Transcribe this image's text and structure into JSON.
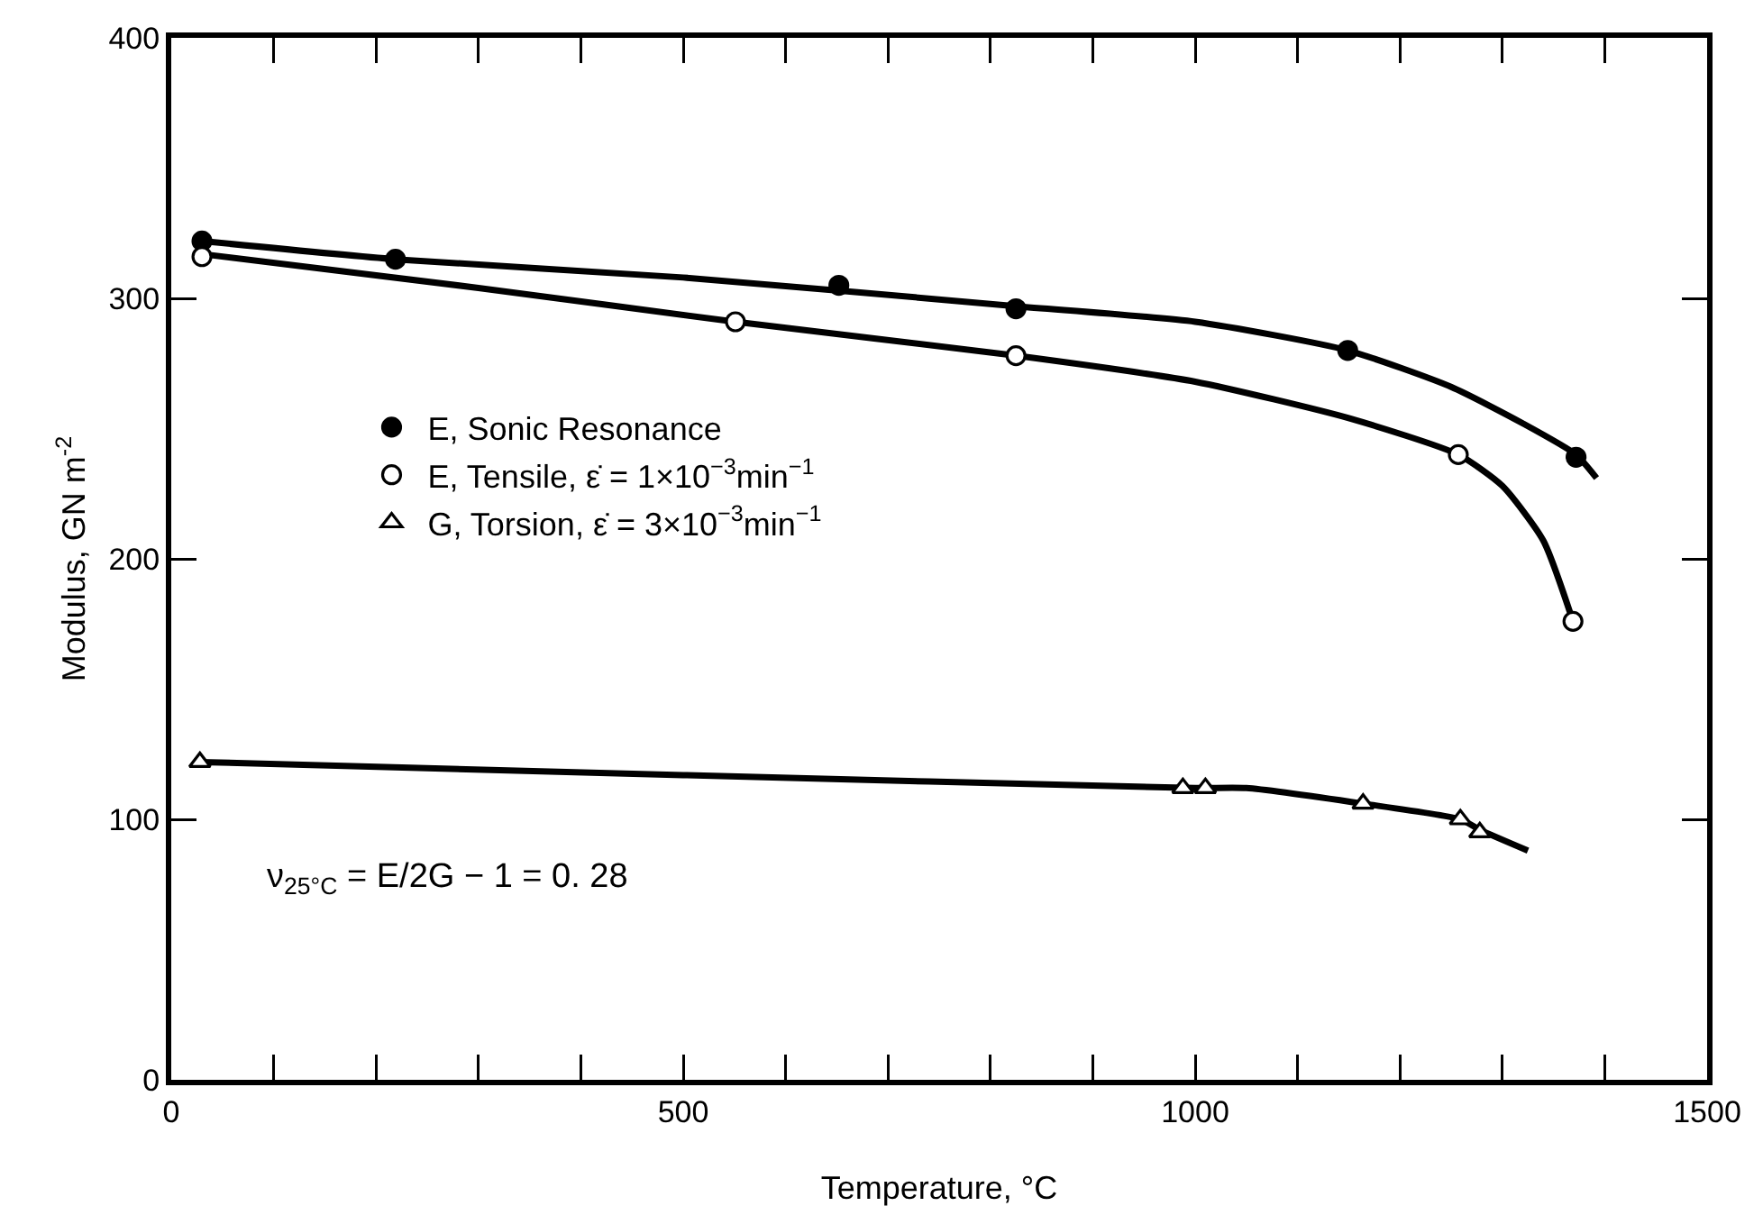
{
  "chart_data": {
    "type": "scatter",
    "xlabel": "Temperature, °C",
    "ylabel": "Modulus, GN m$^{-2}$",
    "xlim": [
      0,
      1500
    ],
    "ylim": [
      0,
      400
    ],
    "xticks": [
      0,
      {
        "value": 100,
        "label": null
      },
      {
        "value": 200,
        "label": null
      },
      {
        "value": 300,
        "label": null
      },
      {
        "value": 400,
        "label": null
      },
      500,
      {
        "value": 600,
        "label": null
      },
      {
        "value": 700,
        "label": null
      },
      {
        "value": 800,
        "label": null
      },
      {
        "value": 900,
        "label": null
      },
      1000,
      {
        "value": 1100,
        "label": null
      },
      {
        "value": 1200,
        "label": null
      },
      {
        "value": 1300,
        "label": null
      },
      {
        "value": 1400,
        "label": null
      },
      1500
    ],
    "yticks": [
      0,
      100,
      200,
      300,
      400
    ],
    "grid": false,
    "legend": "left",
    "annotations": [
      "ν$_{25°C}$ = E/2G − 1 = 0. 28"
    ],
    "series": [
      {
        "name": "E, Sonic Resonance",
        "marker": "circle",
        "color": "#000000",
        "x": [
          30,
          219,
          652,
          825,
          1149,
          1372
        ],
        "values": [
          322,
          315,
          305,
          296,
          280,
          239
        ]
      },
      {
        "name": "E, Tensile, ε̇ = 1×10$^{−3}$min$^{−1}$",
        "marker": "circle",
        "color": "#ffffff",
        "x": [
          30,
          551,
          825,
          1257,
          1369
        ],
        "values": [
          316,
          291,
          278,
          240,
          176
        ]
      },
      {
        "name": "G, Torsion, ε̇ = 3×10$^{−3}$min$^{−1}$",
        "marker": "triangle",
        "color": "#ffffff",
        "x": [
          28,
          988,
          1010,
          1164,
          1259,
          1278
        ],
        "values": [
          122,
          112,
          112,
          106,
          100,
          95
        ]
      },
      {
        "type": "line",
        "marker": "none",
        "line_style": "solid",
        "color": "#000000",
        "x": [
          30,
          219,
          500,
          825,
          1000,
          1149,
          1250,
          1320,
          1372,
          1392
        ],
        "values": [
          322,
          315,
          308,
          297,
          291,
          280,
          266,
          252,
          240,
          231
        ]
      },
      {
        "type": "line",
        "marker": "none",
        "line_style": "solid",
        "color": "#000000",
        "x": [
          30,
          300,
          551,
          825,
          1000,
          1150,
          1257,
          1300,
          1340,
          1369
        ],
        "values": [
          317,
          304,
          291,
          278,
          268,
          254,
          240,
          228,
          207,
          176
        ]
      },
      {
        "type": "line",
        "marker": "none",
        "line_style": "solid",
        "color": "#000000",
        "x": [
          28,
          500,
          1000,
          1050,
          1164,
          1259,
          1278,
          1325
        ],
        "values": [
          122,
          117,
          112,
          112,
          106,
          100,
          96,
          88
        ]
      }
    ]
  }
}
